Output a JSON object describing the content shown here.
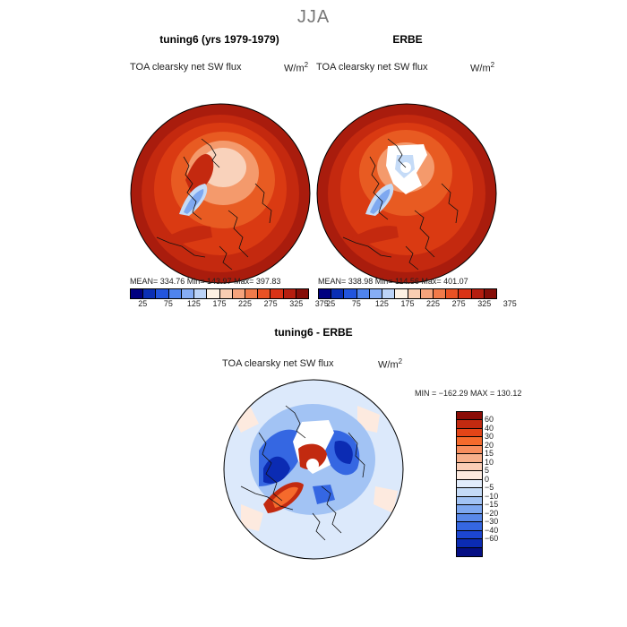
{
  "season": "JJA",
  "panels": [
    {
      "title": "tuning6 (yrs 1979-1979)",
      "variable": "TOA clearsky net SW flux",
      "units": "W/m",
      "units_sup": "2",
      "stats": "MEAN= 334.76   Min= 143.97   Max= 397.83"
    },
    {
      "title": "ERBE",
      "variable": "TOA clearsky net SW flux",
      "units": "W/m",
      "units_sup": "2",
      "stats": "MEAN= 338.98   Min= 114.56   Max= 401.07"
    }
  ],
  "colorbar_top": {
    "colors": [
      "#000080",
      "#0a2fb4",
      "#2255dd",
      "#4f84ee",
      "#86adf5",
      "#bcd3f7",
      "#fdf1e4",
      "#f9cdb2",
      "#f5a37c",
      "#f17a4a",
      "#ea5224",
      "#d93215",
      "#b51e0f",
      "#860e08"
    ],
    "labels": [
      "25",
      "75",
      "125",
      "175",
      "225",
      "275",
      "325",
      "375"
    ]
  },
  "diff_panel": {
    "title": "tuning6 - ERBE",
    "variable": "TOA clearsky net SW flux",
    "units": "W/m",
    "units_sup": "2",
    "minmax": "MIN = −162.29  MAX = 130.12"
  },
  "colorbar_diff": {
    "colors": [
      "#8a0c06",
      "#c22a10",
      "#e34417",
      "#f56a2c",
      "#f88e5e",
      "#f8b08b",
      "#fbcdb5",
      "#fdeadf",
      "#e1ecfb",
      "#c5dbf7",
      "#a2c3f4",
      "#7ea8f0",
      "#5989ea",
      "#3567e2",
      "#1c46d2",
      "#0b2bb3",
      "#050f84"
    ],
    "labels": [
      "60",
      "40",
      "30",
      "20",
      "15",
      "10",
      "5",
      "0",
      "−5",
      "−10",
      "−15",
      "−20",
      "−30",
      "−40",
      "−60"
    ]
  },
  "map_colors": {
    "outer_ring": "#a91c0d",
    "mid_ring": "#c4290f",
    "inner_ring": "#da3a12",
    "ring_orange": "#e85b22",
    "light_orange": "#f49a6c",
    "pale": "#f9d2bb",
    "blue_ice": "#7ea8f0",
    "light_blue": "#c5dbf7",
    "white": "#ffffff",
    "diff_bg": "#dce9fb",
    "diff_red": "#c22a10",
    "diff_blue": "#1c46d2"
  }
}
